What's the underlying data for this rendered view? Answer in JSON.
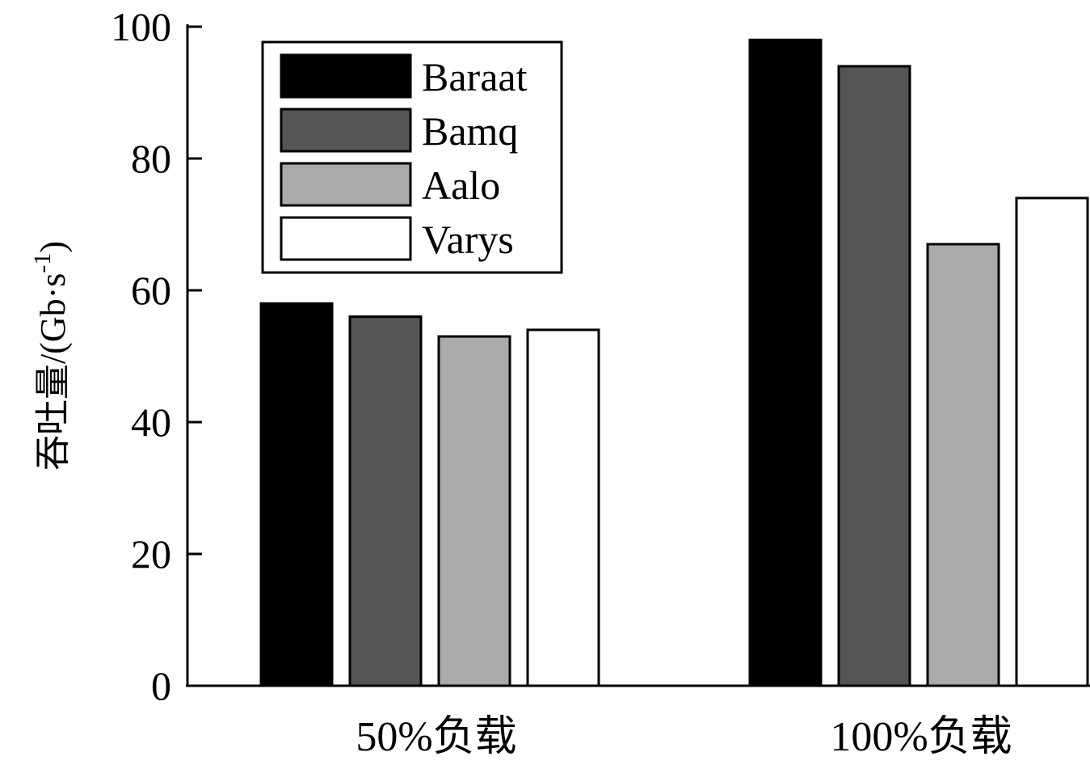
{
  "chart_data": {
    "type": "bar",
    "categories": [
      "50%负载",
      "100%负载"
    ],
    "series": [
      {
        "name": "Baraat",
        "color": "#000000",
        "values": [
          58,
          98
        ]
      },
      {
        "name": "Bamq",
        "color": "#555555",
        "values": [
          56,
          94
        ]
      },
      {
        "name": "Aalo",
        "color": "#aaaaaa",
        "values": [
          53,
          67
        ]
      },
      {
        "name": "Varys",
        "color": "#ffffff",
        "values": [
          54,
          74
        ]
      }
    ],
    "ylabel": "吞吐量/(Gb·s",
    "ylabel_sup": "-1",
    "ylabel_close": ")",
    "ylim": [
      0,
      100
    ],
    "yticks": [
      0,
      20,
      40,
      60,
      80,
      100
    ],
    "legend_position": "top-left",
    "grid": false
  }
}
